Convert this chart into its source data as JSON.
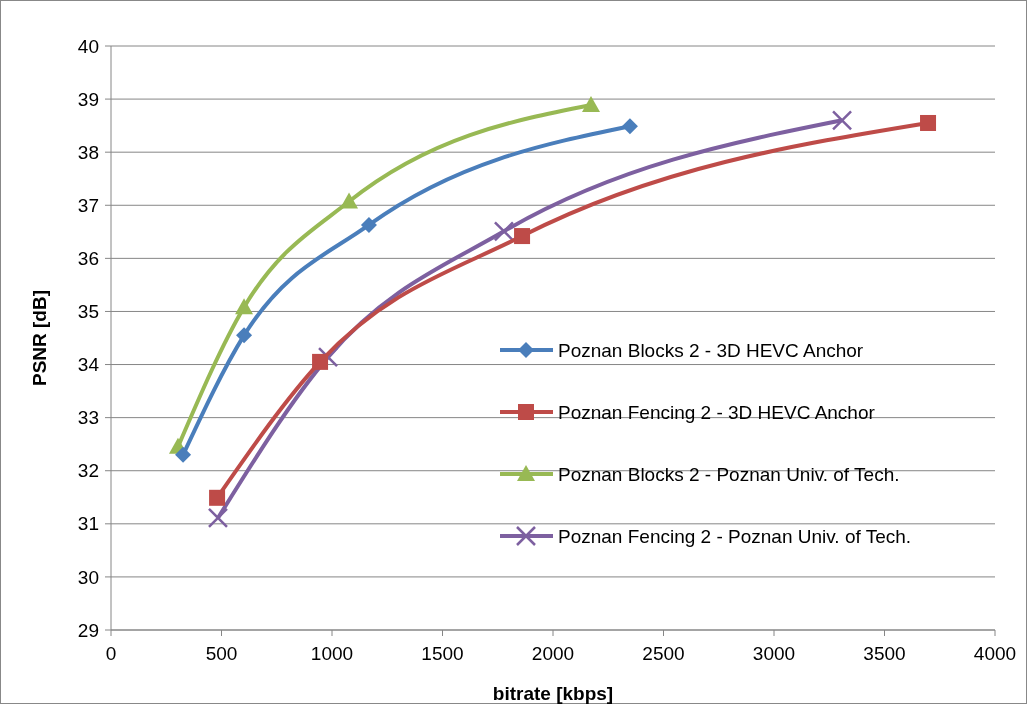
{
  "chart_data": {
    "type": "line",
    "xlabel": "bitrate [kbps]",
    "ylabel": "PSNR [dB]",
    "xlim": [
      0,
      4000
    ],
    "xticks": [
      0,
      500,
      1000,
      1500,
      2000,
      2500,
      3000,
      3500,
      4000
    ],
    "ylim": [
      29,
      40
    ],
    "yticks": [
      29,
      30,
      31,
      32,
      33,
      34,
      35,
      36,
      37,
      38,
      39,
      40
    ],
    "grid": "y",
    "legend": "right",
    "line_style": "solid",
    "series": [
      {
        "name": "Poznan Blocks 2 - 3D HEVC Anchor",
        "color": "#4a7ebb",
        "marker": "diamond",
        "x": [
          326,
          602,
          1167,
          2348
        ],
        "values": [
          32.3,
          34.55,
          36.63,
          38.49
        ]
      },
      {
        "name": "Poznan Fencing 2 - 3D HEVC Anchor",
        "color": "#be4b48",
        "marker": "square",
        "x": [
          480,
          946,
          1860,
          3697
        ],
        "values": [
          31.49,
          34.05,
          36.42,
          38.55
        ]
      },
      {
        "name": "Poznan Blocks 2 - Poznan Univ. of Tech.",
        "color": "#98b954",
        "marker": "triangle",
        "x": [
          303,
          602,
          1077,
          2172
        ],
        "values": [
          32.45,
          35.08,
          37.07,
          38.89
        ]
      },
      {
        "name": "Poznan Fencing 2 - Poznan Univ. of Tech.",
        "color": "#7d60a0",
        "marker": "cross",
        "x": [
          484,
          982,
          1778,
          3308
        ],
        "values": [
          31.11,
          34.14,
          36.51,
          38.6
        ]
      }
    ]
  }
}
